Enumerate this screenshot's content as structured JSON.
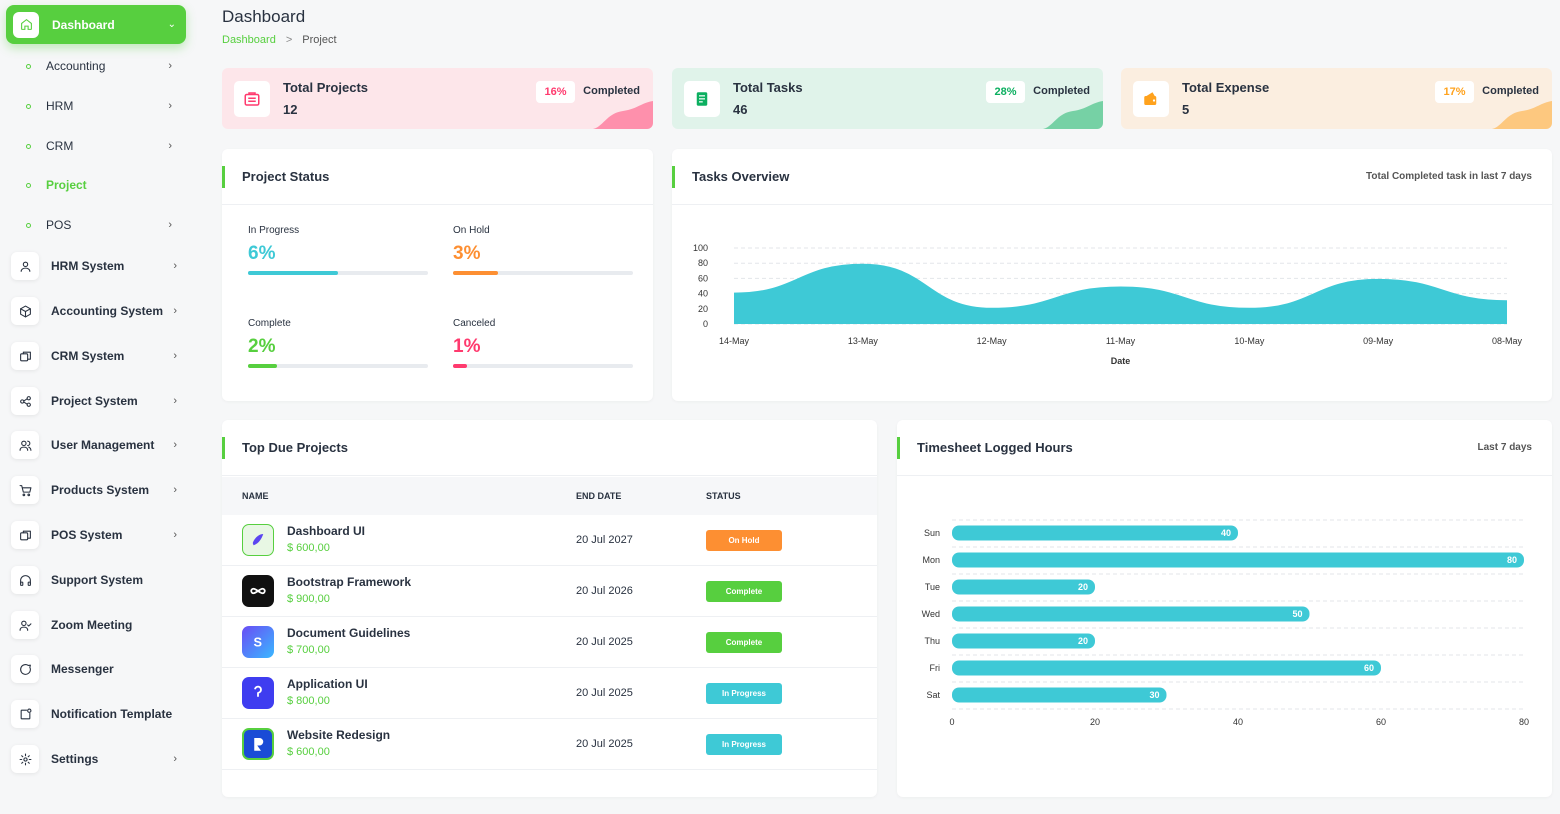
{
  "sidebar": {
    "dashboard": {
      "label": "Dashboard"
    },
    "sub_items": [
      {
        "label": "Accounting",
        "has_arrow": true,
        "active": false
      },
      {
        "label": "HRM",
        "has_arrow": true,
        "active": false
      },
      {
        "label": "CRM",
        "has_arrow": true,
        "active": false
      },
      {
        "label": "Project",
        "has_arrow": false,
        "active": true
      },
      {
        "label": "POS",
        "has_arrow": true,
        "active": false
      }
    ],
    "items": [
      {
        "label": "HRM System",
        "icon": "user-icon",
        "has_arrow": true
      },
      {
        "label": "Accounting System",
        "icon": "box-icon",
        "has_arrow": true
      },
      {
        "label": "CRM System",
        "icon": "layers-icon",
        "has_arrow": true
      },
      {
        "label": "Project System",
        "icon": "share-icon",
        "has_arrow": true
      },
      {
        "label": "User Management",
        "icon": "users-icon",
        "has_arrow": true
      },
      {
        "label": "Products System",
        "icon": "cart-icon",
        "has_arrow": true
      },
      {
        "label": "POS System",
        "icon": "layers-icon",
        "has_arrow": true
      },
      {
        "label": "Support System",
        "icon": "headphones-icon",
        "has_arrow": false
      },
      {
        "label": "Zoom Meeting",
        "icon": "user-check-icon",
        "has_arrow": false
      },
      {
        "label": "Messenger",
        "icon": "message-icon",
        "has_arrow": false
      },
      {
        "label": "Notification Template",
        "icon": "notification-icon",
        "has_arrow": false
      },
      {
        "label": "Settings",
        "icon": "gear-icon",
        "has_arrow": true
      }
    ]
  },
  "header": {
    "title": "Dashboard",
    "breadcrumb": {
      "link": "Dashboard",
      "separator": ">",
      "current": "Project"
    }
  },
  "stats": [
    {
      "title": "Total Projects",
      "value": "12",
      "percent": "16%",
      "status": "Completed",
      "color": "#ff3a6e",
      "bg": "#fde6ea",
      "icon": "projects-icon"
    },
    {
      "title": "Total Tasks",
      "value": "46",
      "percent": "28%",
      "status": "Completed",
      "color": "#0caf60",
      "bg": "#e0f3ea",
      "icon": "tasks-icon"
    },
    {
      "title": "Total Expense",
      "value": "5",
      "percent": "17%",
      "status": "Completed",
      "color": "#ffa21d",
      "bg": "#fbeee0",
      "icon": "wallet-icon"
    }
  ],
  "project_status": {
    "title": "Project Status",
    "items": [
      {
        "label": "In Progress",
        "value": "6%",
        "percent": 50,
        "color": "#3ec9d6"
      },
      {
        "label": "On Hold",
        "value": "3%",
        "percent": 25,
        "color": "#fd8f32"
      },
      {
        "label": "Complete",
        "value": "2%",
        "percent": 16,
        "color": "#57cf3f"
      },
      {
        "label": "Canceled",
        "value": "1%",
        "percent": 8,
        "color": "#ff3a6e"
      }
    ]
  },
  "tasks_overview": {
    "title": "Tasks Overview",
    "subtitle": "Total Completed task in last 7 days"
  },
  "top_due": {
    "title": "Top Due Projects",
    "columns": [
      "NAME",
      "END DATE",
      "STATUS"
    ],
    "rows": [
      {
        "name": "Dashboard UI",
        "price": "$ 600,00",
        "end_date": "20 Jul 2027",
        "status": "On Hold",
        "status_color": "#fd8f32",
        "logo": "dashboard-ui-logo-icon"
      },
      {
        "name": "Bootstrap Framework",
        "price": "$ 900,00",
        "end_date": "20 Jul 2026",
        "status": "Complete",
        "status_color": "#57cf3f",
        "logo": "bootstrap-logo-icon"
      },
      {
        "name": "Document Guidelines",
        "price": "$ 700,00",
        "end_date": "20 Jul 2025",
        "status": "Complete",
        "status_color": "#57cf3f",
        "logo": "document-logo-icon"
      },
      {
        "name": "Application UI",
        "price": "$ 800,00",
        "end_date": "20 Jul 2025",
        "status": "In Progress",
        "status_color": "#3ec9d6",
        "logo": "application-logo-icon"
      },
      {
        "name": "Website Redesign",
        "price": "$ 600,00",
        "end_date": "20 Jul 2025",
        "status": "In Progress",
        "status_color": "#3ec9d6",
        "logo": "website-logo-icon"
      }
    ]
  },
  "timesheet": {
    "title": "Timesheet Logged Hours",
    "subtitle": "Last 7 days"
  },
  "chart_data": [
    {
      "type": "area",
      "title": "Tasks Overview",
      "x": [
        "14-May",
        "13-May",
        "12-May",
        "11-May",
        "10-May",
        "09-May",
        "08-May"
      ],
      "series": [
        {
          "values": [
            40,
            78,
            20,
            48,
            20,
            58,
            30
          ]
        }
      ],
      "xlabel": "Date",
      "ylabel": "",
      "ylim": [
        0,
        100
      ],
      "yticks": [
        0,
        20,
        40,
        60,
        80,
        100
      ],
      "grid": true,
      "color": "#3ec9d6"
    },
    {
      "type": "bar",
      "orientation": "horizontal",
      "title": "Timesheet Logged Hours",
      "categories": [
        "Sun",
        "Mon",
        "Tue",
        "Wed",
        "Thu",
        "Fri",
        "Sat"
      ],
      "values": [
        40,
        80,
        20,
        50,
        20,
        60,
        30
      ],
      "xlim": [
        0,
        80
      ],
      "xticks": [
        0,
        20,
        40,
        60,
        80
      ],
      "grid": true,
      "color": "#3ec9d6"
    }
  ]
}
